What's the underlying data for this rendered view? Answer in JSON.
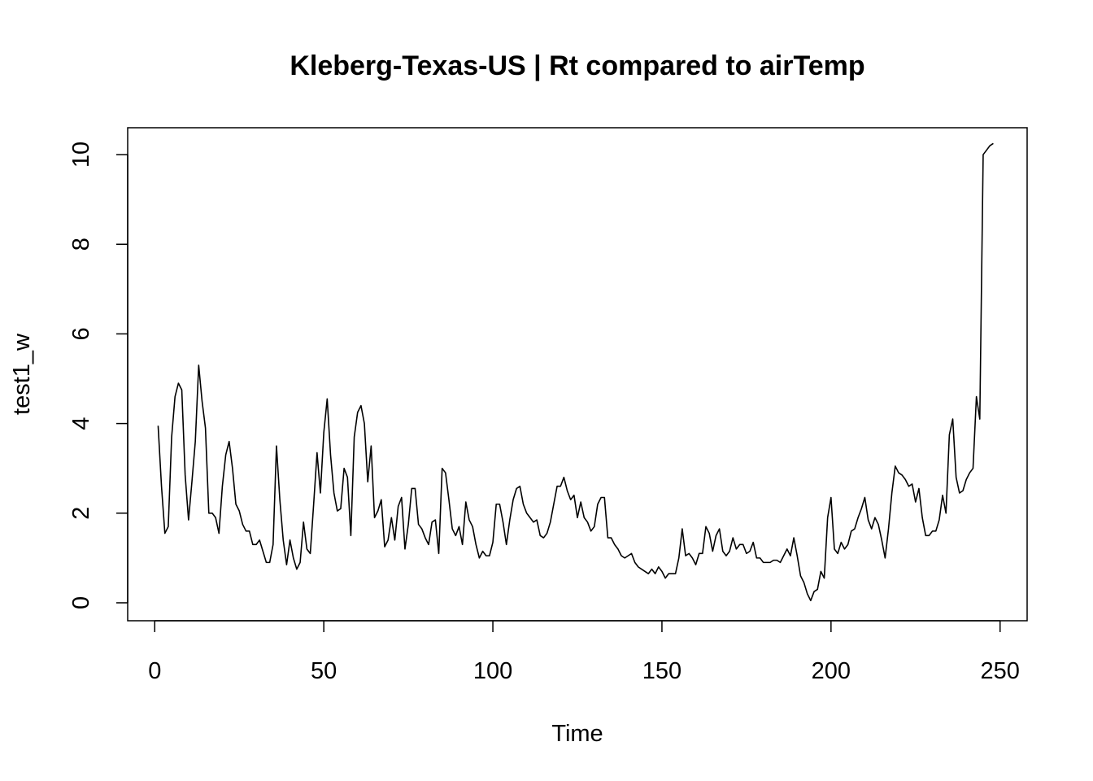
{
  "chart_data": {
    "type": "line",
    "title": "Kleberg-Texas-US | Rt compared to airTemp",
    "xlabel": "Time",
    "ylabel": "test1_w",
    "xlim": [
      -8,
      258
    ],
    "ylim": [
      -0.4,
      10.6
    ],
    "xticks": [
      0,
      50,
      100,
      150,
      200,
      250
    ],
    "yticks": [
      0,
      2,
      4,
      6,
      8,
      10
    ],
    "grid": false,
    "legend": "none",
    "line_color": "#000000",
    "series": [
      {
        "x_start": 1,
        "values": [
          3.95,
          2.6,
          1.55,
          1.7,
          3.7,
          4.6,
          4.9,
          4.75,
          2.85,
          1.85,
          2.7,
          3.6,
          5.3,
          4.5,
          3.9,
          2.0,
          2.0,
          1.9,
          1.55,
          2.6,
          3.3,
          3.6,
          3.0,
          2.2,
          2.05,
          1.75,
          1.6,
          1.6,
          1.3,
          1.3,
          1.4,
          1.15,
          0.9,
          0.9,
          1.3,
          3.5,
          2.3,
          1.4,
          0.85,
          1.4,
          1.0,
          0.75,
          0.9,
          1.8,
          1.2,
          1.1,
          2.2,
          3.35,
          2.45,
          3.8,
          4.55,
          3.3,
          2.45,
          2.05,
          2.1,
          3.0,
          2.8,
          1.5,
          3.7,
          4.25,
          4.4,
          4.0,
          2.7,
          3.5,
          1.9,
          2.05,
          2.3,
          1.25,
          1.4,
          1.9,
          1.4,
          2.15,
          2.35,
          1.2,
          1.75,
          2.55,
          2.55,
          1.75,
          1.65,
          1.45,
          1.3,
          1.8,
          1.85,
          1.1,
          3.0,
          2.9,
          2.3,
          1.65,
          1.5,
          1.7,
          1.3,
          2.25,
          1.85,
          1.7,
          1.3,
          1.0,
          1.15,
          1.05,
          1.05,
          1.35,
          2.2,
          2.2,
          1.8,
          1.3,
          1.85,
          2.3,
          2.55,
          2.6,
          2.2,
          2.0,
          1.9,
          1.8,
          1.85,
          1.5,
          1.45,
          1.55,
          1.8,
          2.2,
          2.6,
          2.6,
          2.8,
          2.5,
          2.3,
          2.4,
          1.9,
          2.25,
          1.9,
          1.8,
          1.6,
          1.7,
          2.2,
          2.35,
          2.35,
          1.45,
          1.45,
          1.3,
          1.2,
          1.05,
          1.0,
          1.05,
          1.1,
          0.9,
          0.8,
          0.75,
          0.7,
          0.65,
          0.75,
          0.65,
          0.8,
          0.7,
          0.55,
          0.65,
          0.65,
          0.65,
          1.0,
          1.65,
          1.05,
          1.1,
          1.0,
          0.85,
          1.1,
          1.1,
          1.7,
          1.55,
          1.15,
          1.5,
          1.65,
          1.15,
          1.05,
          1.15,
          1.45,
          1.2,
          1.3,
          1.3,
          1.1,
          1.15,
          1.35,
          1.0,
          1.0,
          0.9,
          0.9,
          0.9,
          0.95,
          0.95,
          0.9,
          1.05,
          1.2,
          1.05,
          1.45,
          1.05,
          0.6,
          0.45,
          0.2,
          0.05,
          0.25,
          0.3,
          0.7,
          0.55,
          1.9,
          2.35,
          1.2,
          1.1,
          1.35,
          1.2,
          1.3,
          1.6,
          1.65,
          1.9,
          2.1,
          2.35,
          1.85,
          1.65,
          1.9,
          1.75,
          1.4,
          1.0,
          1.65,
          2.45,
          3.05,
          2.9,
          2.85,
          2.75,
          2.6,
          2.65,
          2.25,
          2.55,
          1.9,
          1.5,
          1.5,
          1.6,
          1.6,
          1.85,
          2.4,
          2.0,
          3.75,
          4.1,
          2.8,
          2.45,
          2.5,
          2.75,
          2.9,
          3.0,
          4.6,
          4.1,
          10.0,
          10.1,
          10.2,
          10.25
        ]
      }
    ]
  }
}
